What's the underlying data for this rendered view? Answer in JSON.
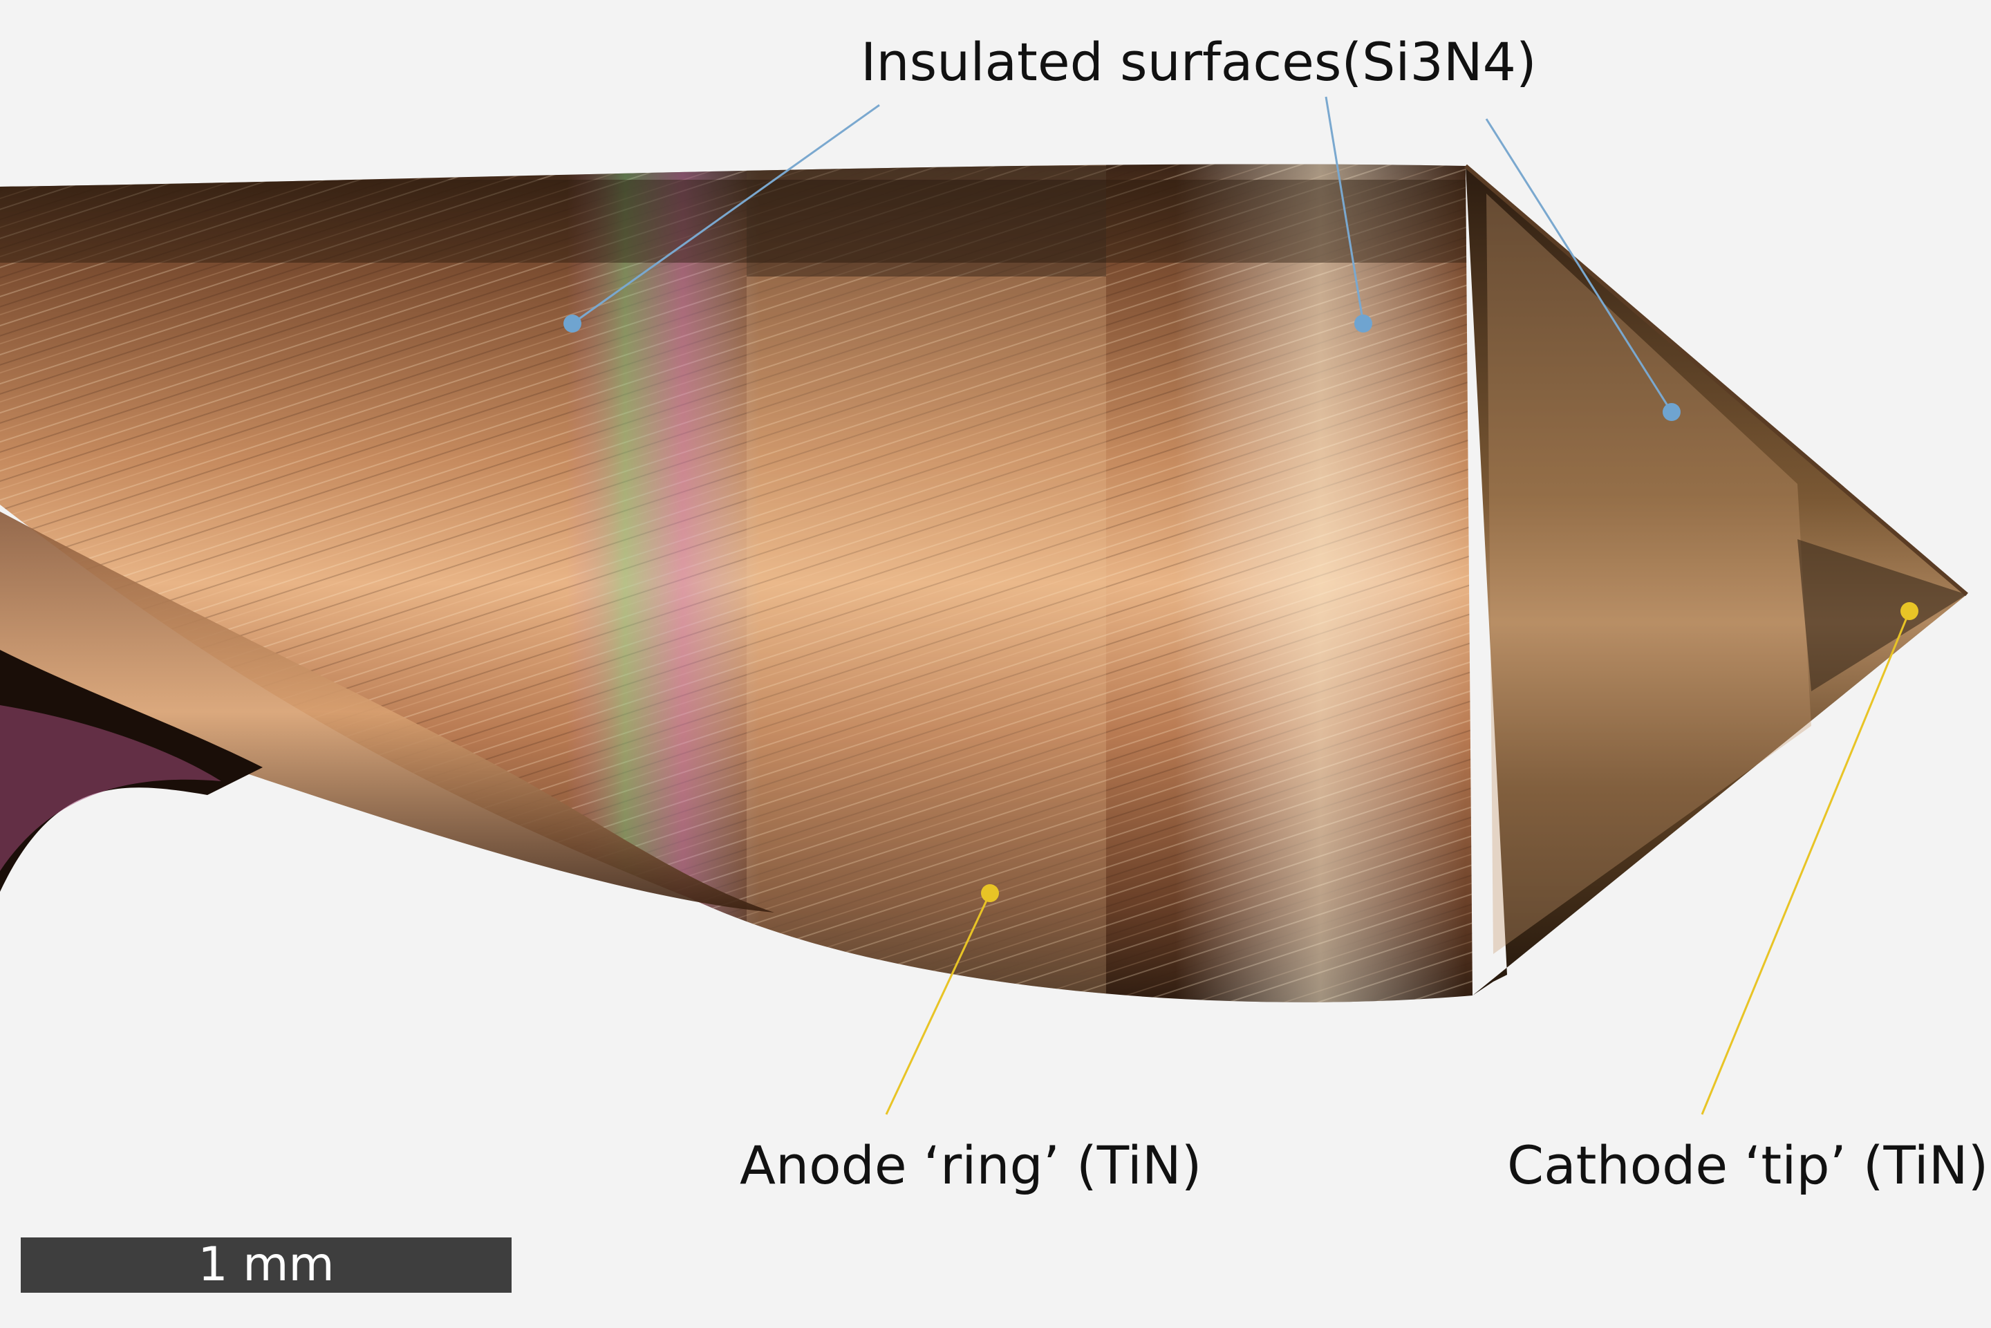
{
  "labels": {
    "insulated": "Insulated surfaces(Si3N4)",
    "anode": "Anode ‘ring’ (TiN)",
    "cathode": "Cathode ‘tip’ (TiN)"
  },
  "scale_bar": {
    "label": "1 mm"
  },
  "colors": {
    "background": "#f3f3f3",
    "insulated_marker": "#6fa4d0",
    "tin_marker": "#e8c426",
    "scale_bar": "#3e3e3e",
    "drill_dark": "#3a2416",
    "drill_bronze": "#b07850",
    "drill_highlight": "#f0c890"
  }
}
